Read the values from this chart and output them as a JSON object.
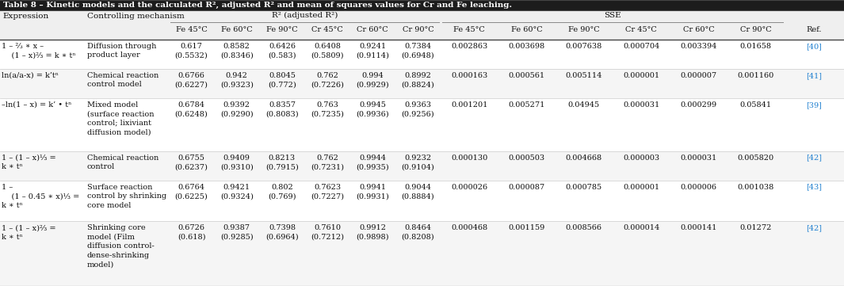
{
  "title": "Table 8 – Kinetic models and the calculated R², adjusted R² and mean of squares values for Cr and Fe leaching.",
  "rows": [
    {
      "expr": [
        "1 – ⅔ ∗ x –",
        "    (1 – x)²⁄₃ = k ∗ tⁿ"
      ],
      "mech": [
        "Diffusion through",
        "product layer"
      ],
      "r2": [
        "0.617",
        "0.8582",
        "0.6426",
        "0.6408",
        "0.9241",
        "0.7384"
      ],
      "r2a": [
        "(0.5532)",
        "(0.8346)",
        "(0.583)",
        "(0.5809)",
        "(0.9114)",
        "(0.6948)"
      ],
      "sse": [
        "0.002863",
        "0.003698",
        "0.007638",
        "0.000704",
        "0.003394",
        "0.01658"
      ],
      "ref": "[40]"
    },
    {
      "expr": [
        "ln(a/a-x) = k’tⁿ"
      ],
      "mech": [
        "Chemical reaction",
        "control model"
      ],
      "r2": [
        "0.6766",
        "0.942",
        "0.8045",
        "0.762",
        "0.994",
        "0.8992"
      ],
      "r2a": [
        "(0.6227)",
        "(0.9323)",
        "(0.772)",
        "(0.7226)",
        "(0.9929)",
        "(0.8824)"
      ],
      "sse": [
        "0.000163",
        "0.000561",
        "0.005114",
        "0.000001",
        "0.000007",
        "0.001160"
      ],
      "ref": "[41]"
    },
    {
      "expr": [
        "–ln(1 – x) = k’ • tⁿ"
      ],
      "mech": [
        "Mixed model",
        "(surface reaction",
        "control; lixiviant",
        "diffusion model)"
      ],
      "r2": [
        "0.6784",
        "0.9392",
        "0.8357",
        "0.763",
        "0.9945",
        "0.9363"
      ],
      "r2a": [
        "(0.6248)",
        "(0.9290)",
        "(0.8083)",
        "(0.7235)",
        "(0.9936)",
        "(0.9256)"
      ],
      "sse": [
        "0.001201",
        "0.005271",
        "0.04945",
        "0.000031",
        "0.000299",
        "0.05841"
      ],
      "ref": "[39]"
    },
    {
      "expr": [
        "1 – (1 – x)¹⁄₃ =",
        "k ∗ tⁿ"
      ],
      "mech": [
        "Chemical reaction",
        "control"
      ],
      "r2": [
        "0.6755",
        "0.9409",
        "0.8213",
        "0.762",
        "0.9944",
        "0.9232"
      ],
      "r2a": [
        "(0.6237)",
        "(0.9310)",
        "(0.7915)",
        "(0.7231)",
        "(0.9935)",
        "(0.9104)"
      ],
      "sse": [
        "0.000130",
        "0.000503",
        "0.004668",
        "0.000003",
        "0.000031",
        "0.005820"
      ],
      "ref": "[42]"
    },
    {
      "expr": [
        "1 –",
        "    (1 – 0.45 ∗ x)¹⁄₃ =",
        "k ∗ tⁿ"
      ],
      "mech": [
        "Surface reaction",
        "control by shrinking",
        "core model"
      ],
      "r2": [
        "0.6764",
        "0.9421",
        "0.802",
        "0.7623",
        "0.9941",
        "0.9044"
      ],
      "r2a": [
        "(0.6225)",
        "(0.9324)",
        "(0.769)",
        "(0.7227)",
        "(0.9931)",
        "(0.8884)"
      ],
      "sse": [
        "0.000026",
        "0.000087",
        "0.000785",
        "0.000001",
        "0.000006",
        "0.001038"
      ],
      "ref": "[43]"
    },
    {
      "expr": [
        "1 – (1 – x)²⁄₃ =",
        "k ∗ tⁿ"
      ],
      "mech": [
        "Shrinking core",
        "model (Film",
        "diffusion control-",
        "dense-shrinking",
        "model)"
      ],
      "r2": [
        "0.6726",
        "0.9387",
        "0.7398",
        "0.7610",
        "0.9912",
        "0.8464"
      ],
      "r2a": [
        "(0.618)",
        "(0.9285)",
        "(0.6964)",
        "(0.7212)",
        "(0.9898)",
        "(0.8208)"
      ],
      "sse": [
        "0.000468",
        "0.001159",
        "0.008566",
        "0.000014",
        "0.000141",
        "0.01272"
      ],
      "ref": "[42]"
    }
  ],
  "r2_cols": [
    "Fe 45°C",
    "Fe 60°C",
    "Fe 90°C",
    "Cr 45°C",
    "Cr 60°C",
    "Cr 90°C"
  ],
  "sse_cols": [
    "Fe 45°C",
    "Fe 60°C",
    "Fe 90°C",
    "Cr 45°C",
    "Cr 60°C",
    "Cr 90°C"
  ],
  "title_bg": "#1c1c1c",
  "title_color": "#ffffff",
  "header_bg": "#efefef",
  "row_bg_even": "#ffffff",
  "row_bg_odd": "#f5f5f5",
  "ref_color": "#2080d0",
  "text_color": "#111111",
  "line_color": "#999999",
  "line_color_dark": "#444444"
}
